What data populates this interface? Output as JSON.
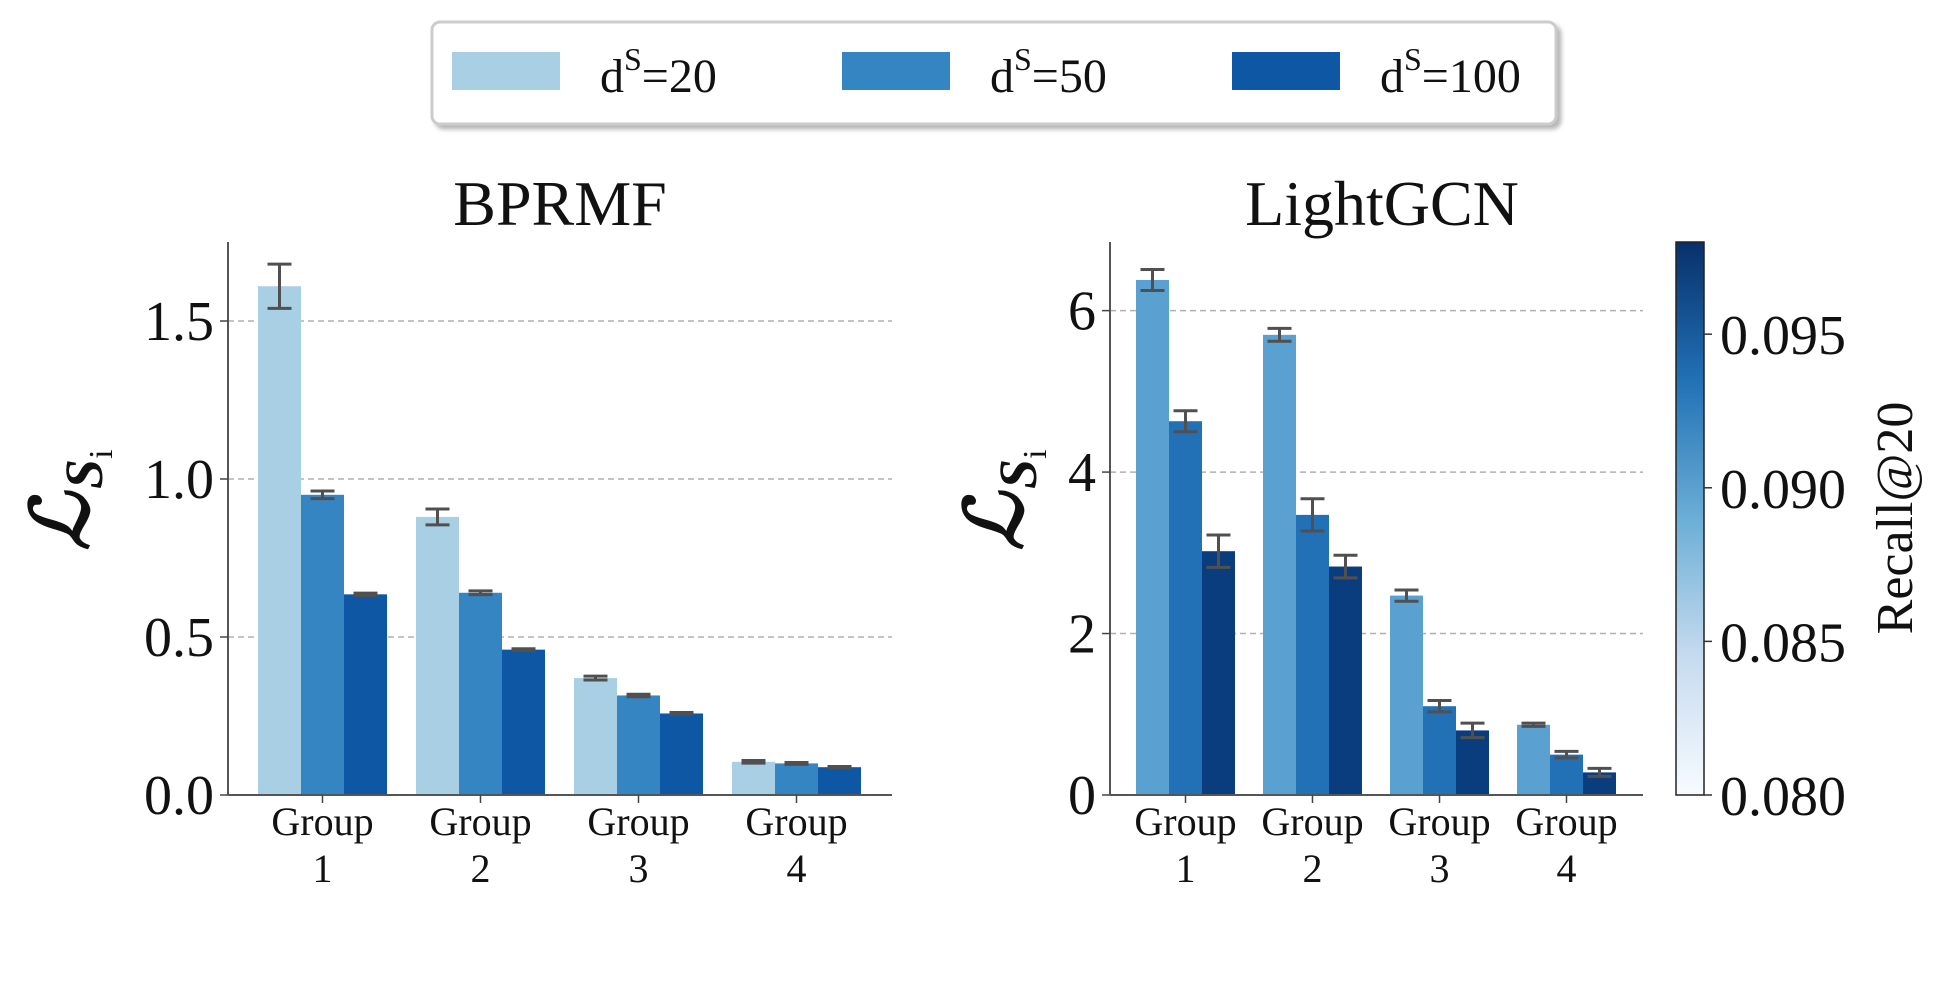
{
  "legend": {
    "entries": [
      {
        "base": "d",
        "sup": "S",
        "rest": "=20",
        "color": "#a9cfe4"
      },
      {
        "base": "d",
        "sup": "S",
        "rest": "=50",
        "color": "#3585c2"
      },
      {
        "base": "d",
        "sup": "S",
        "rest": "=100",
        "color": "#0d57a5"
      }
    ]
  },
  "chart_data": [
    {
      "type": "bar",
      "title": "BPRMF",
      "ylabel_main": "ℒ",
      "ylabel_sub": "S",
      "ylabel_subsub": "i",
      "categories": [
        [
          "Group",
          "1"
        ],
        [
          "Group",
          "2"
        ],
        [
          "Group",
          "3"
        ],
        [
          "Group",
          "4"
        ]
      ],
      "ylim": [
        0,
        1.75
      ],
      "yticks": [
        0.0,
        0.5,
        1.0,
        1.5
      ],
      "ytick_labels": [
        "0.0",
        "0.5",
        "1.0",
        "1.5"
      ],
      "grid": "horizontal dashed",
      "series": [
        {
          "name": "dS=20",
          "color": "#a9cfe4",
          "values": [
            1.61,
            0.88,
            0.37,
            0.105
          ],
          "errors": [
            0.07,
            0.025,
            0.006,
            0.004
          ]
        },
        {
          "name": "dS=50",
          "color": "#3585c2",
          "values": [
            0.95,
            0.64,
            0.315,
            0.1
          ],
          "errors": [
            0.012,
            0.006,
            0.004,
            0.003
          ]
        },
        {
          "name": "dS=100",
          "color": "#0d57a5",
          "values": [
            0.635,
            0.46,
            0.258,
            0.088
          ],
          "errors": [
            0.004,
            0.003,
            0.003,
            0.002
          ]
        }
      ]
    },
    {
      "type": "bar",
      "title": "LightGCN",
      "ylabel_main": "ℒ",
      "ylabel_sub": "S",
      "ylabel_subsub": "i",
      "categories": [
        [
          "Group",
          "1"
        ],
        [
          "Group",
          "2"
        ],
        [
          "Group",
          "3"
        ],
        [
          "Group",
          "4"
        ]
      ],
      "ylim": [
        0,
        6.85
      ],
      "yticks": [
        0,
        2,
        4,
        6
      ],
      "ytick_labels": [
        "0",
        "2",
        "4",
        "6"
      ],
      "grid": "horizontal dashed",
      "series": [
        {
          "name": "dS=20",
          "color": "#5aa0d0",
          "values": [
            6.38,
            5.7,
            2.47,
            0.87
          ],
          "errors": [
            0.13,
            0.08,
            0.07,
            0.02
          ]
        },
        {
          "name": "dS=50",
          "color": "#2270b6",
          "values": [
            4.63,
            3.47,
            1.1,
            0.5
          ],
          "errors": [
            0.13,
            0.2,
            0.07,
            0.04
          ]
        },
        {
          "name": "dS=100",
          "color": "#0a3d7e",
          "values": [
            3.02,
            2.83,
            0.8,
            0.28
          ],
          "errors": [
            0.2,
            0.14,
            0.09,
            0.05
          ]
        }
      ]
    }
  ],
  "colorbar": {
    "label": "Recall@20",
    "min": 0.08,
    "max": 0.098,
    "ticks": [
      0.08,
      0.085,
      0.09,
      0.095
    ],
    "tick_labels": [
      "0.080",
      "0.085",
      "0.090",
      "0.095"
    ],
    "colors": [
      "#f7fbff",
      "#c6dbef",
      "#6baed6",
      "#2171b5",
      "#08306b"
    ]
  }
}
